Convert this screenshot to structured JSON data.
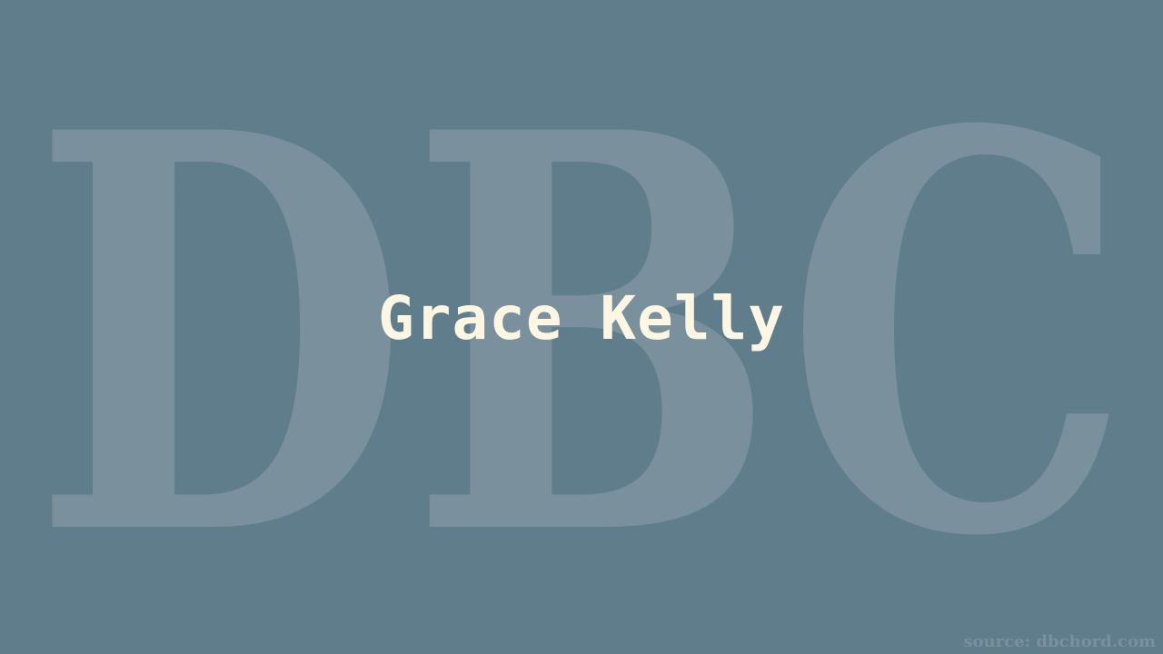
{
  "background_color": "#607d8b",
  "watermark": {
    "text": "DBC",
    "color": "#7a909c"
  },
  "title": {
    "text": "Grace Kelly",
    "color": "#fdf6e3"
  },
  "source": {
    "text": "source: dbchord.com",
    "color": "#7a909c"
  }
}
